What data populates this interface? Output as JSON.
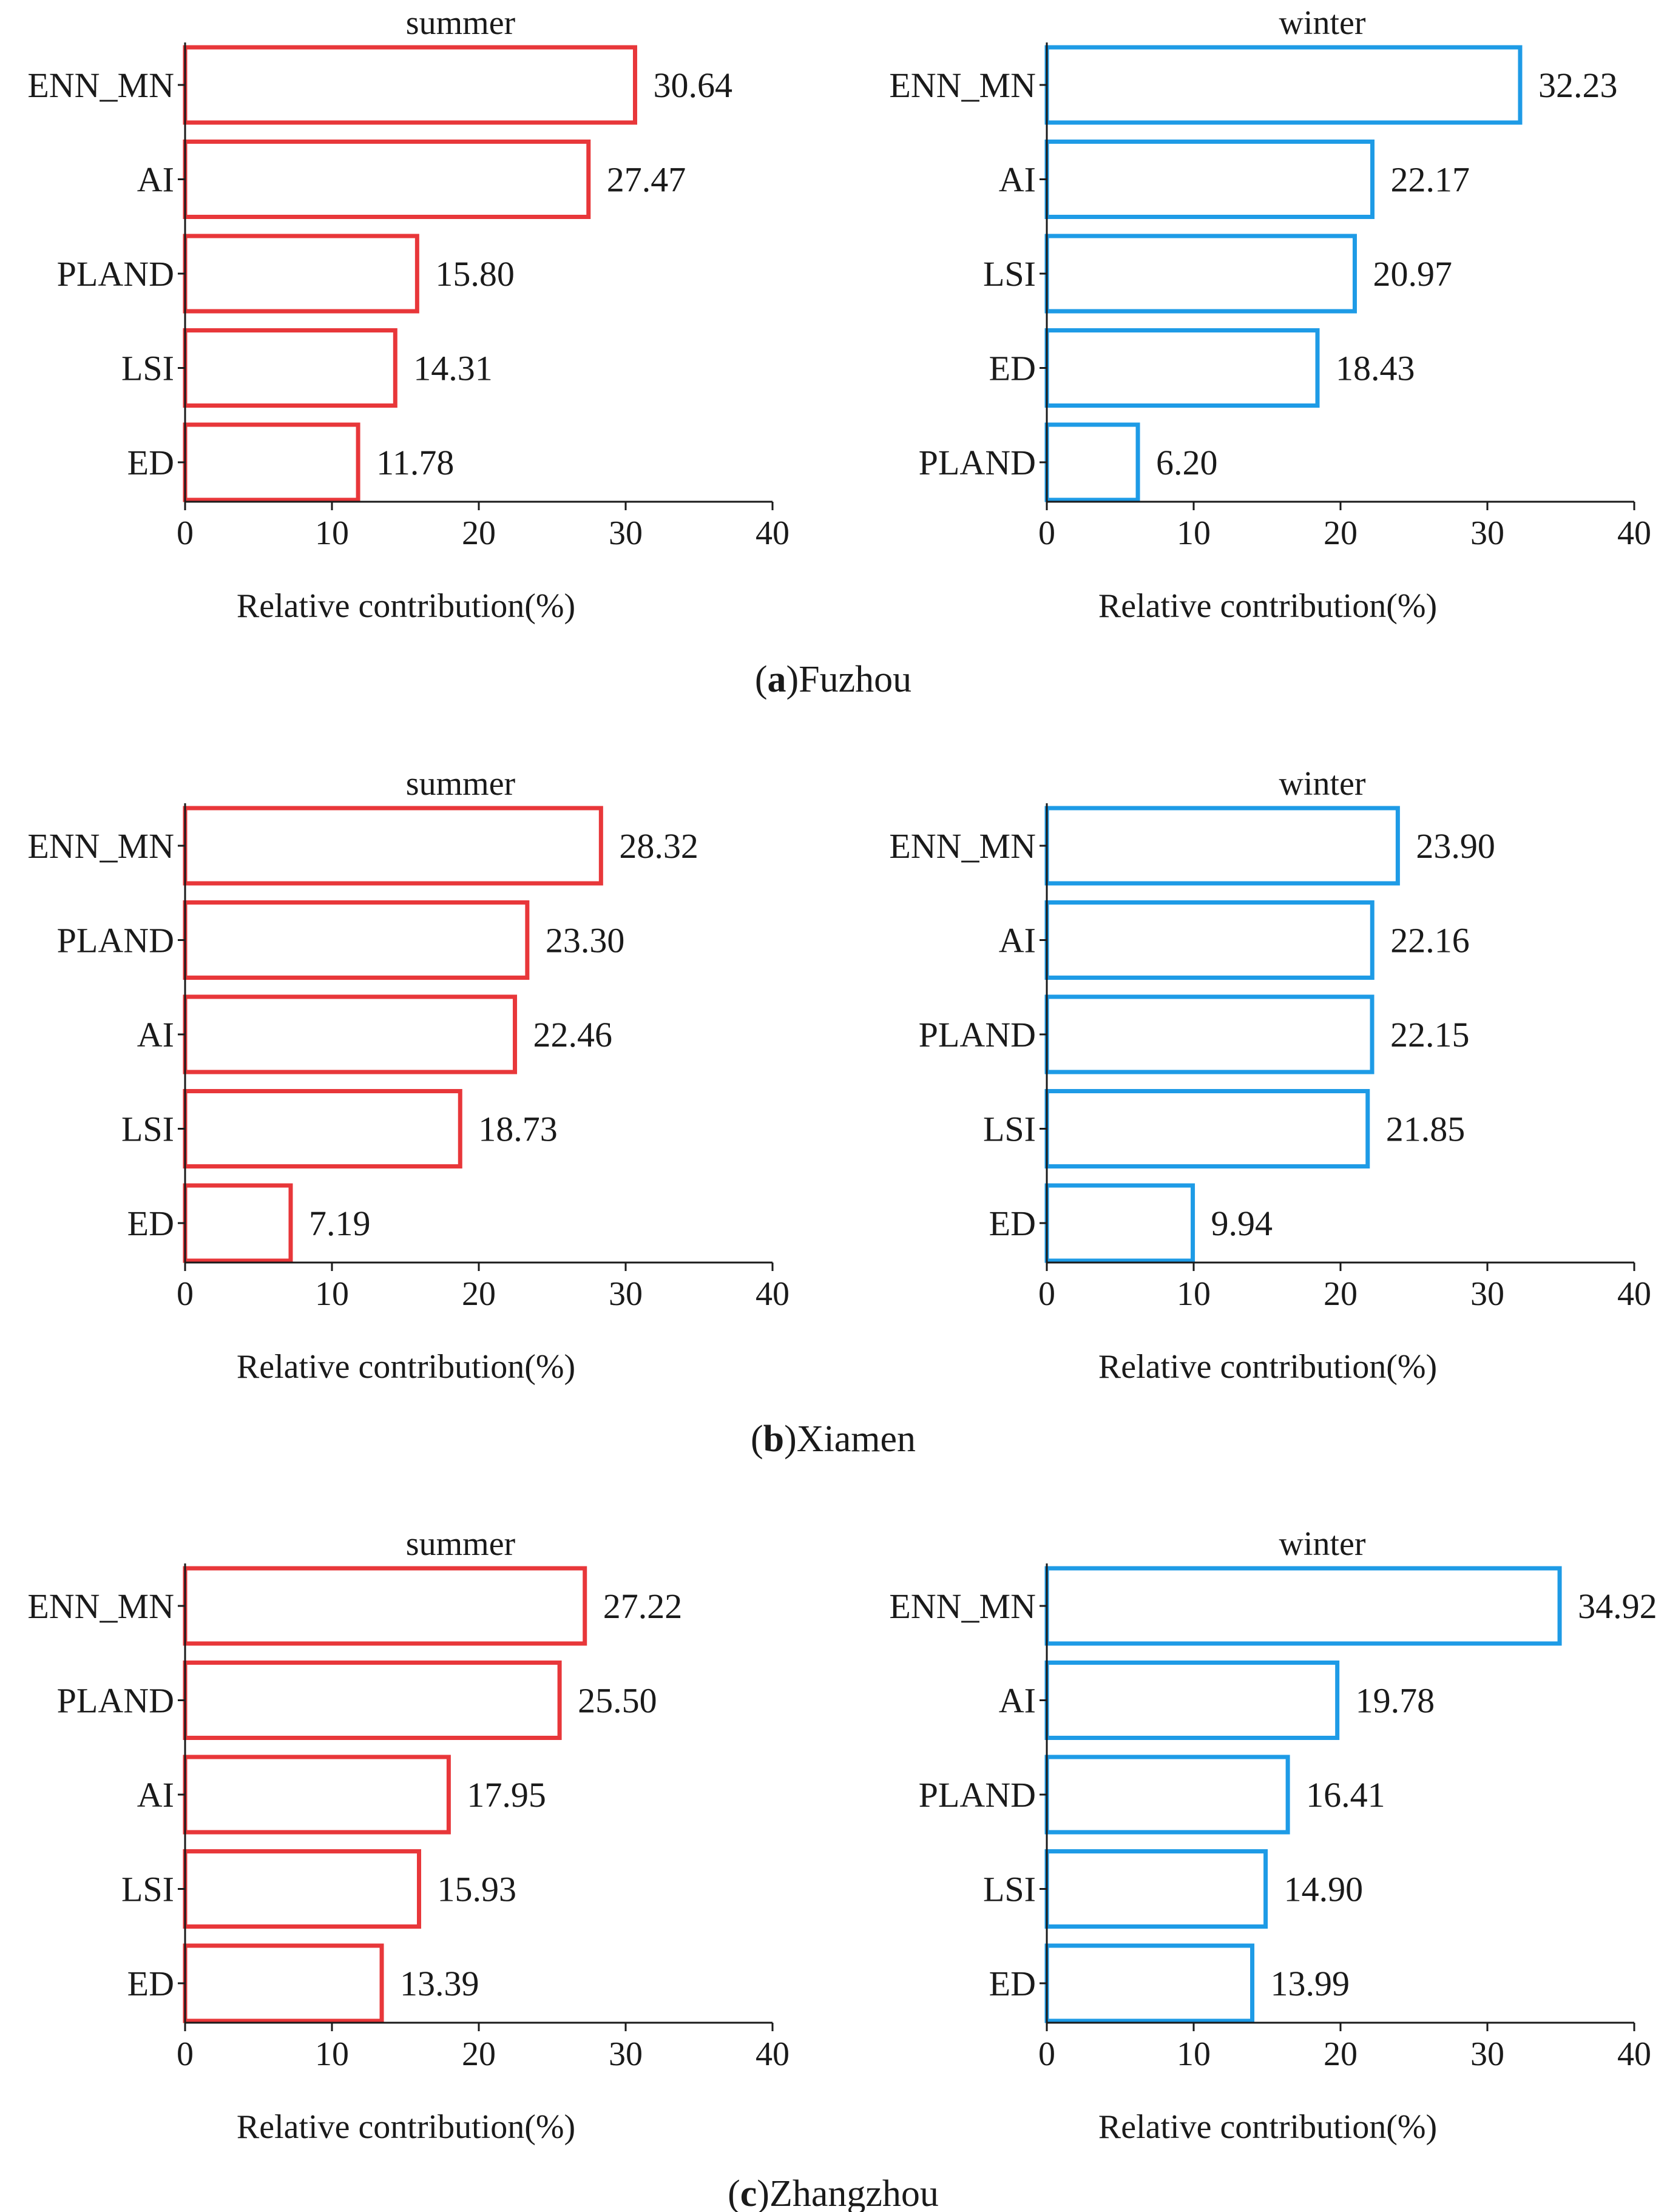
{
  "figure": {
    "panels": [
      {
        "letter": "a",
        "city": "Fuzhou",
        "open": "(",
        "close": ")"
      },
      {
        "letter": "b",
        "city": "Xiamen",
        "open": "(",
        "close": ")"
      },
      {
        "letter": "c",
        "city": "Zhangzhou",
        "open": "(",
        "close": ")"
      }
    ]
  },
  "colors": {
    "summer": "#e8373a",
    "winter": "#1e9be6",
    "axis": "#1a1a1a"
  },
  "chart_data": [
    {
      "type": "bar",
      "orientation": "horizontal",
      "panel": "a",
      "city": "Fuzhou",
      "title": "summer",
      "xlabel": "Relative contribution(%)",
      "ylabel": "",
      "xlim": [
        0,
        40
      ],
      "xticks": [
        0,
        10,
        20,
        30,
        40
      ],
      "categories": [
        "ENN_MN",
        "AI",
        "PLAND",
        "LSI",
        "ED"
      ],
      "values": [
        30.64,
        27.47,
        15.8,
        14.31,
        11.78
      ],
      "value_labels": [
        "30.64",
        "27.47",
        "15.80",
        "14.31",
        "11.78"
      ],
      "color": "#e8373a",
      "fill": "none"
    },
    {
      "type": "bar",
      "orientation": "horizontal",
      "panel": "a",
      "city": "Fuzhou",
      "title": "winter",
      "xlabel": "Relative contribution(%)",
      "ylabel": "",
      "xlim": [
        0,
        40
      ],
      "xticks": [
        0,
        10,
        20,
        30,
        40
      ],
      "categories": [
        "ENN_MN",
        "AI",
        "LSI",
        "ED",
        "PLAND"
      ],
      "values": [
        32.23,
        22.17,
        20.97,
        18.43,
        6.2
      ],
      "value_labels": [
        "32.23",
        "22.17",
        "20.97",
        "18.43",
        "6.20"
      ],
      "color": "#1e9be6",
      "fill": "none"
    },
    {
      "type": "bar",
      "orientation": "horizontal",
      "panel": "b",
      "city": "Xiamen",
      "title": "summer",
      "xlabel": "Relative contribution(%)",
      "ylabel": "",
      "xlim": [
        0,
        40
      ],
      "xticks": [
        0,
        10,
        20,
        30,
        40
      ],
      "categories": [
        "ENN_MN",
        "PLAND",
        "AI",
        "LSI",
        "ED"
      ],
      "values": [
        28.32,
        23.3,
        22.46,
        18.73,
        7.19
      ],
      "value_labels": [
        "28.32",
        "23.30",
        "22.46",
        "18.73",
        "7.19"
      ],
      "color": "#e8373a",
      "fill": "none"
    },
    {
      "type": "bar",
      "orientation": "horizontal",
      "panel": "b",
      "city": "Xiamen",
      "title": "winter",
      "xlabel": "Relative contribution(%)",
      "ylabel": "",
      "xlim": [
        0,
        40
      ],
      "xticks": [
        0,
        10,
        20,
        30,
        40
      ],
      "categories": [
        "ENN_MN",
        "AI",
        "PLAND",
        "LSI",
        "ED"
      ],
      "values": [
        23.9,
        22.16,
        22.15,
        21.85,
        9.94
      ],
      "value_labels": [
        "23.90",
        "22.16",
        "22.15",
        "21.85",
        "9.94"
      ],
      "color": "#1e9be6",
      "fill": "none"
    },
    {
      "type": "bar",
      "orientation": "horizontal",
      "panel": "c",
      "city": "Zhangzhou",
      "title": "summer",
      "xlabel": "Relative contribution(%)",
      "ylabel": "",
      "xlim": [
        0,
        40
      ],
      "xticks": [
        0,
        10,
        20,
        30,
        40
      ],
      "categories": [
        "ENN_MN",
        "PLAND",
        "AI",
        "LSI",
        "ED"
      ],
      "values": [
        27.22,
        25.5,
        17.95,
        15.93,
        13.39
      ],
      "value_labels": [
        "27.22",
        "25.50",
        "17.95",
        "15.93",
        "13.39"
      ],
      "color": "#e8373a",
      "fill": "none"
    },
    {
      "type": "bar",
      "orientation": "horizontal",
      "panel": "c",
      "city": "Zhangzhou",
      "title": "winter",
      "xlabel": "Relative contribution(%)",
      "ylabel": "",
      "xlim": [
        0,
        40
      ],
      "xticks": [
        0,
        10,
        20,
        30,
        40
      ],
      "categories": [
        "ENN_MN",
        "AI",
        "PLAND",
        "LSI",
        "ED"
      ],
      "values": [
        34.92,
        19.78,
        16.41,
        14.9,
        13.99
      ],
      "value_labels": [
        "34.92",
        "19.78",
        "16.41",
        "14.90",
        "13.99"
      ],
      "color": "#1e9be6",
      "fill": "none"
    }
  ]
}
